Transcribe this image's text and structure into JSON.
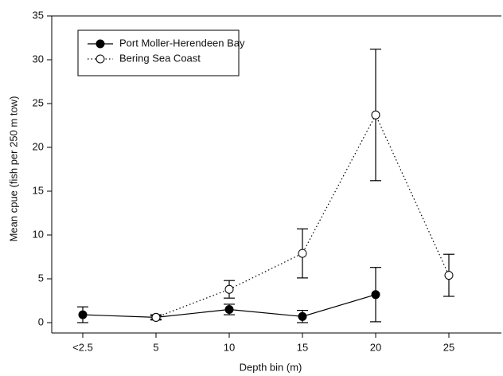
{
  "chart_data": {
    "type": "line",
    "x_label": "Depth bin (m)",
    "y_label": "Mean cpue (fish per 250 m tow)",
    "categories": [
      "<2.5",
      "5",
      "10",
      "15",
      "20",
      "25"
    ],
    "series": [
      {
        "name": "Port Moller-Herendeen Bay",
        "color": "#000000",
        "linestyle": "solid",
        "marker_fill": "#000000",
        "values": [
          0.9,
          0.6,
          1.5,
          0.7,
          3.2,
          null
        ],
        "errors": [
          0.9,
          0.3,
          0.6,
          0.7,
          3.1,
          null
        ]
      },
      {
        "name": "Bering Sea Coast",
        "color": "#000000",
        "linestyle": "dotted",
        "marker_fill": "#ffffff",
        "values": [
          null,
          0.6,
          3.8,
          7.9,
          23.7,
          5.4
        ],
        "errors": [
          null,
          0.2,
          1.0,
          2.8,
          7.5,
          2.4
        ]
      }
    ],
    "ylim": [
      0,
      35
    ],
    "yticks": [
      0,
      5,
      10,
      15,
      20,
      25,
      30,
      35
    ],
    "legend": "upper left"
  }
}
